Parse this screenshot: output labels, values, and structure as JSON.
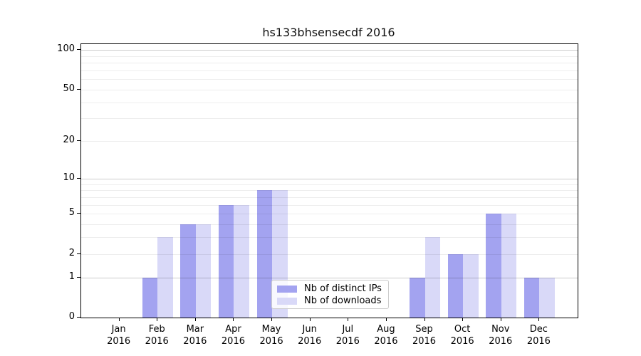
{
  "chart_data": {
    "type": "bar",
    "title": "hs133bhsensecdf 2016",
    "categories": [
      "Jan",
      "Feb",
      "Mar",
      "Apr",
      "May",
      "Jun",
      "Jul",
      "Aug",
      "Sep",
      "Oct",
      "Nov",
      "Dec"
    ],
    "year_label": "2016",
    "series": [
      {
        "name": "Nb of distinct IPs",
        "color": "#a3a3f0",
        "values": [
          0,
          1,
          4,
          6,
          8,
          0,
          0,
          0,
          1,
          2,
          5,
          1
        ]
      },
      {
        "name": "Nb of downloads",
        "color": "#d9d9f8",
        "values": [
          0,
          3,
          4,
          6,
          8,
          0,
          0,
          0,
          3,
          2,
          5,
          1
        ]
      }
    ],
    "yscale": "log1p",
    "ylim": [
      0,
      110
    ],
    "yticks": [
      0,
      1,
      2,
      5,
      10,
      20,
      50,
      100
    ],
    "grid_major": [
      1,
      10,
      100
    ],
    "grid_minor": [
      2,
      3,
      4,
      5,
      6,
      7,
      8,
      9,
      20,
      30,
      40,
      50,
      60,
      70,
      80,
      90
    ],
    "grid": true,
    "legend_position": "lower center",
    "xlabel": "",
    "ylabel": ""
  }
}
